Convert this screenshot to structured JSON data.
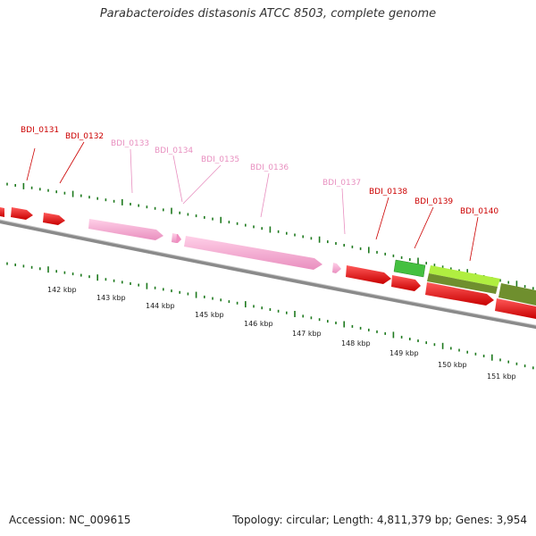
{
  "title": "Parabacteroides distasonis ATCC 8503, complete genome",
  "footer": {
    "accession": "Accession: NC_009615",
    "topology": "Topology: circular; Length: 4,811,379 bp; Genes: 3,954"
  },
  "colors": {
    "red": "#e8141e",
    "red_label": "#cc0000",
    "pink": "#f4a6cf",
    "pink_label": "#e890c0",
    "green": "#44c040",
    "lime": "#b0ee40",
    "olive": "#6f8f2e",
    "tick": "#1f7a1f",
    "backbone": "#8a8a8a"
  },
  "gene_labels": [
    {
      "name": "BDI_0131",
      "kind": "red"
    },
    {
      "name": "BDI_0132",
      "kind": "red"
    },
    {
      "name": "BDI_0133",
      "kind": "pink"
    },
    {
      "name": "BDI_0134",
      "kind": "pink"
    },
    {
      "name": "BDI_0135",
      "kind": "pink"
    },
    {
      "name": "BDI_0136",
      "kind": "pink"
    },
    {
      "name": "BDI_0137",
      "kind": "pink"
    },
    {
      "name": "BDI_0138",
      "kind": "red"
    },
    {
      "name": "BDI_0139",
      "kind": "red"
    },
    {
      "name": "BDI_0140",
      "kind": "red"
    }
  ],
  "scale_labels": [
    "142 kbp",
    "143 kbp",
    "144 kbp",
    "145 kbp",
    "146 kbp",
    "147 kbp",
    "148 kbp",
    "149 kbp",
    "150 kbp",
    "151 kbp"
  ]
}
